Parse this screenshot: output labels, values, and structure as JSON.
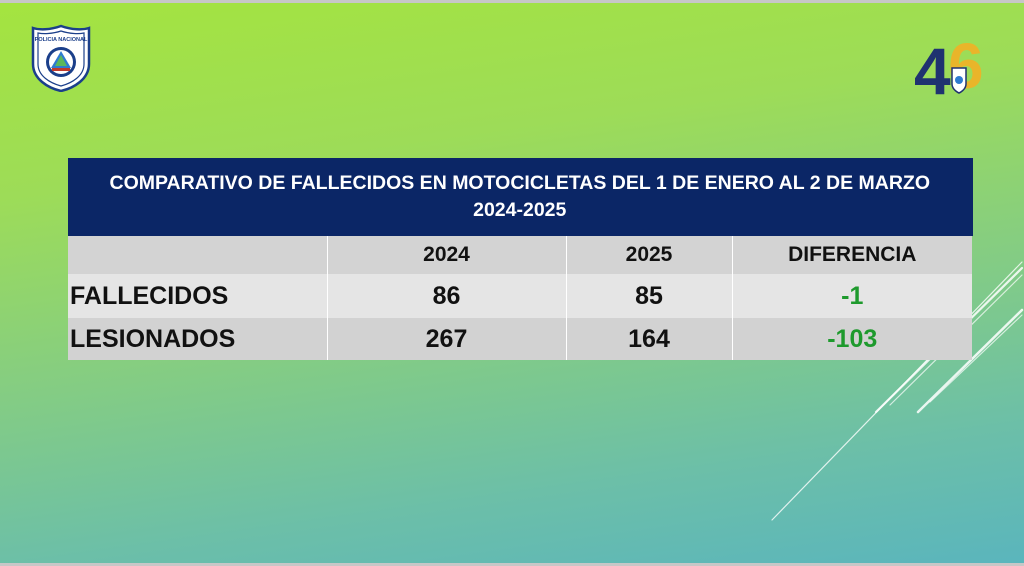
{
  "table": {
    "title": "COMPARATIVO DE FALLECIDOS EN MOTOCICLETAS DEL 1 DE ENERO AL 2 DE MARZO 2024-2025",
    "headers": [
      "",
      "2024",
      "2025",
      "DIFERENCIA"
    ],
    "rows": [
      {
        "label": "FALLECIDOS",
        "y2024": "86",
        "y2025": "85",
        "diff": "-1"
      },
      {
        "label": "LESIONADOS",
        "y2024": "267",
        "y2025": "164",
        "diff": "-103"
      }
    ]
  },
  "logos": {
    "left_text": "POLICIA NACIONAL",
    "right_digit_1": "4",
    "right_digit_2": "6"
  },
  "colors": {
    "title_bg": "#0b2666",
    "diff_text": "#1e9a2d",
    "gradient_top": "#a4e43f",
    "gradient_bottom": "#5ab5bd"
  }
}
